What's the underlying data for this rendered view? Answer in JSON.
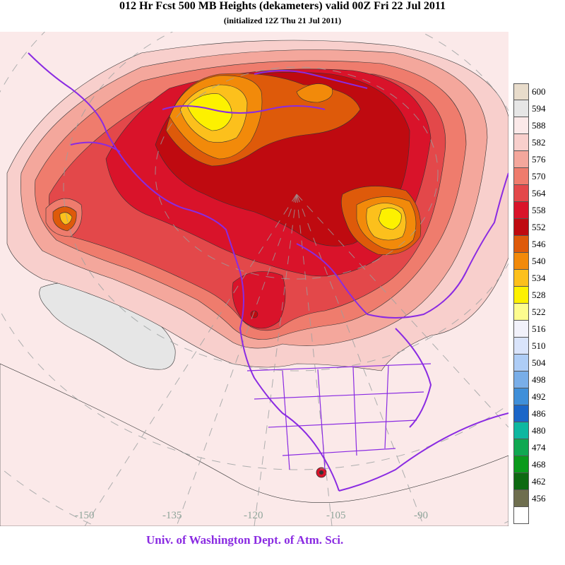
{
  "header": {
    "title": "012 Hr Fcst 500 MB Heights (dekameters) valid 00Z Fri 22 Jul 2011",
    "subtitle": "(initialized 12Z Thu 21 Jul 2011)"
  },
  "longitude_labels": [
    "-150",
    "-135",
    "-120",
    "-105",
    "-90"
  ],
  "legend": [
    {
      "label": "600",
      "color": "#e8dccb"
    },
    {
      "label": "594",
      "color": "#e6e6e6"
    },
    {
      "label": "588",
      "color": "#fbe9e9"
    },
    {
      "label": "582",
      "color": "#f8cfcc"
    },
    {
      "label": "576",
      "color": "#f4a79c"
    },
    {
      "label": "570",
      "color": "#ef7c6d"
    },
    {
      "label": "564",
      "color": "#e3484a"
    },
    {
      "label": "558",
      "color": "#d9132a"
    },
    {
      "label": "552",
      "color": "#bf0a10"
    },
    {
      "label": "546",
      "color": "#de5a0a"
    },
    {
      "label": "540",
      "color": "#f28a0a"
    },
    {
      "label": "534",
      "color": "#fcc01c"
    },
    {
      "label": "528",
      "color": "#fdf100"
    },
    {
      "label": "522",
      "color": "#fdfc8e"
    },
    {
      "label": "516",
      "color": "#f2f2fb"
    },
    {
      "label": "510",
      "color": "#d9e4fb"
    },
    {
      "label": "504",
      "color": "#aecdf6"
    },
    {
      "label": "498",
      "color": "#79aee8"
    },
    {
      "label": "492",
      "color": "#3f8fd9"
    },
    {
      "label": "486",
      "color": "#1b66c8"
    },
    {
      "label": "480",
      "color": "#0eb7a0"
    },
    {
      "label": "474",
      "color": "#10a851"
    },
    {
      "label": "468",
      "color": "#0a9a1c"
    },
    {
      "label": "462",
      "color": "#0e6a12"
    },
    {
      "label": "456",
      "color": "#6e6e4e"
    },
    {
      "label": "",
      "color": "#ffffff"
    }
  ],
  "footer": {
    "credit": "Univ. of Washington Dept. of Atm. Sci."
  },
  "colors": {
    "background": "#fbe9e9",
    "coastline": "#8a2be2",
    "grid": "#9aa0a0"
  }
}
